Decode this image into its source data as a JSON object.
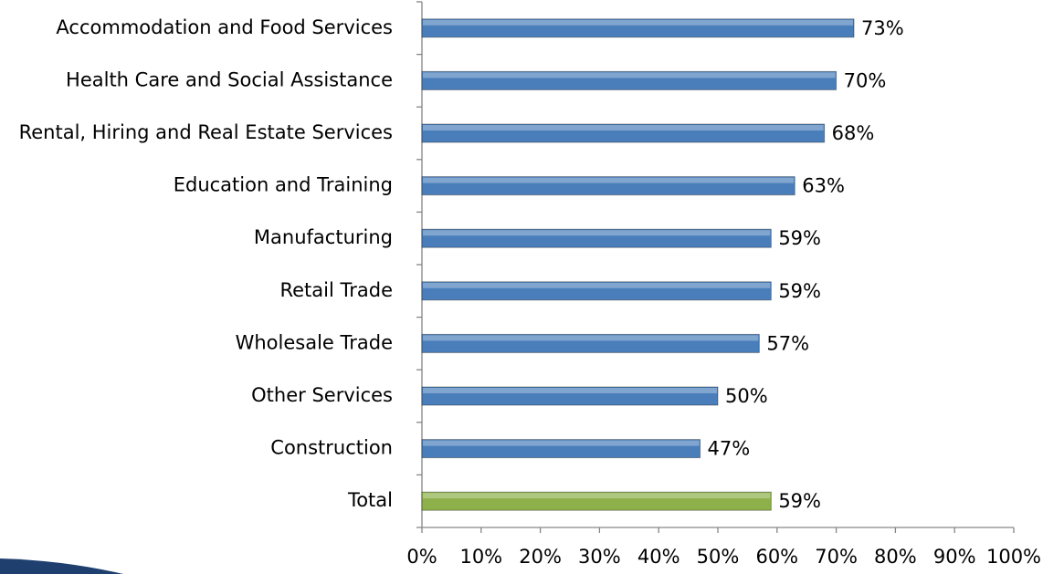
{
  "chart_data": {
    "type": "bar",
    "orientation": "horizontal",
    "categories": [
      "Accommodation and Food Services",
      "Health Care and Social Assistance",
      "Rental, Hiring and Real Estate Services",
      "Education and Training",
      "Manufacturing",
      "Retail Trade",
      "Wholesale Trade",
      "Other Services",
      "Construction",
      "Total"
    ],
    "values": [
      73,
      70,
      68,
      63,
      59,
      59,
      57,
      50,
      47,
      59
    ],
    "value_labels": [
      "73%",
      "70%",
      "68%",
      "63%",
      "59%",
      "59%",
      "57%",
      "50%",
      "47%",
      "59%"
    ],
    "colors": [
      "#4a7ebb",
      "#4a7ebb",
      "#4a7ebb",
      "#4a7ebb",
      "#4a7ebb",
      "#4a7ebb",
      "#4a7ebb",
      "#4a7ebb",
      "#4a7ebb",
      "#8db04a"
    ],
    "xlim": [
      0,
      100
    ],
    "xticks": [
      {
        "value": 0,
        "label": "0%"
      },
      {
        "value": 10,
        "label": "10%"
      },
      {
        "value": 20,
        "label": "20%"
      },
      {
        "value": 30,
        "label": "30%"
      },
      {
        "value": 40,
        "label": "40%"
      },
      {
        "value": 50,
        "label": "50%"
      },
      {
        "value": 60,
        "label": "60%"
      },
      {
        "value": 70,
        "label": "70%"
      },
      {
        "value": 80,
        "label": "80%"
      },
      {
        "value": 90,
        "label": "90%"
      },
      {
        "value": 100,
        "label": "100%"
      }
    ]
  }
}
